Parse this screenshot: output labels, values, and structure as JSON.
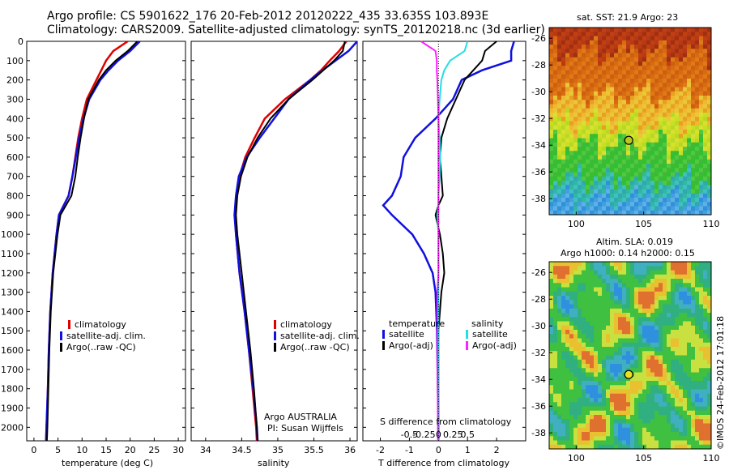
{
  "header": {
    "line1": "Argo profile: CS 5901622_176 20-Feb-2012 20120222_435 33.635S 103.893E",
    "line2": "Climatology: CARS2009. Satellite-adjusted climatology: synTS_20120218.nc (3d earlier)"
  },
  "colors": {
    "climatology": "#e00000",
    "satellite": "#1010e0",
    "argo": "#000000",
    "sal_satellite": "#20e0e0",
    "sal_argo": "#ff20ff"
  },
  "depth_axis": {
    "ticks": [
      "0",
      "100",
      "200",
      "300",
      "400",
      "500",
      "600",
      "700",
      "800",
      "900",
      "1000",
      "1100",
      "1200",
      "1300",
      "1400",
      "1500",
      "1600",
      "1700",
      "1800",
      "1900",
      "2000"
    ],
    "ylim": [
      0,
      2070
    ]
  },
  "panel_temp": {
    "xlabel": "temperature (deg C)",
    "xticks": [
      "0",
      "5",
      "10",
      "15",
      "20",
      "25",
      "30"
    ],
    "xlim": [
      -1.5,
      31.5
    ],
    "legend": [
      "climatology",
      "satellite-adj. clim.",
      "Argo(..raw -QC)"
    ]
  },
  "panel_sal": {
    "xlabel": "salinity",
    "xticks": [
      "34",
      "34.5",
      "35",
      "35.5",
      "36"
    ],
    "xlim": [
      33.8,
      36.1
    ],
    "legend": [
      "climatology",
      "satellite-adj. clim.",
      "Argo(..raw -QC)"
    ],
    "note1": "Argo AUSTRALIA",
    "note2": "PI: Susan Wijffels"
  },
  "panel_diff": {
    "xlabel": "T difference from climatology",
    "xticks": [
      "-2",
      "-1",
      "0",
      "1",
      "2"
    ],
    "xlim": [
      -2.6,
      3.0
    ],
    "top_label": "S difference from climatology",
    "top_ticks": [
      "-0.5",
      "-0.25",
      "0",
      "0.25",
      "0.5"
    ],
    "legend_temp_title": "temperature",
    "legend_sal_title": "salinity",
    "legend_temp": [
      "satellite",
      "Argo(-adj)"
    ],
    "legend_sal": [
      "satellite",
      "Argo(-adj)"
    ]
  },
  "map_sst": {
    "title": "sat. SST: 21.9 Argo: 23",
    "yticks": [
      "-26",
      "-28",
      "-30",
      "-32",
      "-34",
      "-36",
      "-38"
    ],
    "xticks": [
      "100",
      "105",
      "110"
    ]
  },
  "map_sla": {
    "title1": "Altim. SLA: 0.019",
    "title2": "Argo h1000: 0.14 h2000: 0.15",
    "yticks": [
      "-26",
      "-28",
      "-30",
      "-32",
      "-34",
      "-36",
      "-38"
    ],
    "xticks": [
      "100",
      "105",
      "110"
    ]
  },
  "credit": "©IMOS 24-Feb-2012 17:01:18",
  "chart_data": [
    {
      "type": "line",
      "xlabel": "temperature (deg C)",
      "ylabel": "",
      "xlim": [
        -1.5,
        31.5
      ],
      "ylim": [
        0,
        2070
      ],
      "y_depth": [
        0,
        50,
        100,
        150,
        200,
        300,
        400,
        500,
        600,
        700,
        800,
        900,
        1000,
        1200,
        1400,
        1600,
        1800,
        2000,
        2070
      ],
      "series": [
        {
          "name": "climatology",
          "values": [
            19.5,
            16.5,
            15.0,
            14.0,
            13.0,
            11.0,
            10.0,
            9.2,
            8.6,
            8.0,
            7.2,
            5.2,
            4.7,
            3.9,
            3.4,
            3.1,
            2.9,
            2.6,
            2.5
          ]
        },
        {
          "name": "satellite-adj. clim.",
          "values": [
            22.0,
            20.0,
            17.5,
            15.5,
            13.8,
            11.5,
            10.3,
            9.4,
            8.7,
            8.0,
            7.2,
            5.2,
            4.7,
            3.9,
            3.4,
            3.1,
            2.9,
            2.6,
            2.5
          ]
        },
        {
          "name": "Argo(..raw -QC)",
          "values": [
            21.5,
            19.5,
            17.0,
            15.0,
            13.5,
            11.3,
            10.4,
            9.7,
            9.1,
            8.6,
            7.8,
            5.5,
            4.9,
            4.0,
            3.5,
            3.2,
            3.0,
            2.8,
            2.7
          ]
        }
      ]
    },
    {
      "type": "line",
      "xlabel": "salinity",
      "ylabel": "",
      "xlim": [
        33.8,
        36.1
      ],
      "ylim": [
        0,
        2070
      ],
      "y_depth": [
        0,
        50,
        100,
        150,
        200,
        300,
        400,
        500,
        600,
        700,
        800,
        900,
        1000,
        1200,
        1400,
        1600,
        1800,
        2000,
        2070
      ],
      "series": [
        {
          "name": "climatology",
          "values": [
            35.95,
            35.85,
            35.72,
            35.6,
            35.45,
            35.1,
            34.82,
            34.68,
            34.55,
            34.47,
            34.43,
            34.41,
            34.42,
            34.47,
            34.54,
            34.6,
            34.65,
            34.7,
            34.71
          ]
        },
        {
          "name": "satellite-adj. clim.",
          "values": [
            36.1,
            35.98,
            35.8,
            35.62,
            35.45,
            35.15,
            34.95,
            34.75,
            34.57,
            34.46,
            34.42,
            34.4,
            34.42,
            34.47,
            34.54,
            34.6,
            34.66,
            34.71,
            34.72
          ]
        },
        {
          "name": "Argo(..raw -QC)",
          "values": [
            35.93,
            35.9,
            35.78,
            35.63,
            35.48,
            35.15,
            34.9,
            34.72,
            34.58,
            34.49,
            34.44,
            34.42,
            34.44,
            34.5,
            34.56,
            34.62,
            34.67,
            34.71,
            34.72
          ]
        }
      ]
    },
    {
      "type": "line",
      "xlabel": "T difference from climatology",
      "ylabel": "",
      "xlim": [
        -2.6,
        3.0
      ],
      "ylim": [
        0,
        2070
      ],
      "y_depth": [
        0,
        50,
        100,
        150,
        200,
        300,
        400,
        500,
        600,
        700,
        800,
        850,
        900,
        1000,
        1100,
        1200,
        1300,
        1500,
        2000,
        2070
      ],
      "series": [
        {
          "name": "temperature satellite",
          "values": [
            2.6,
            2.5,
            2.5,
            1.5,
            0.8,
            0.5,
            -0.1,
            -0.8,
            -1.2,
            -1.3,
            -1.6,
            -1.9,
            -1.6,
            -0.9,
            -0.5,
            -0.2,
            -0.1,
            -0.05,
            0.0,
            0.0
          ]
        },
        {
          "name": "temperature Argo(-adj)",
          "values": [
            2.0,
            1.6,
            1.5,
            1.2,
            0.9,
            0.6,
            0.3,
            0.1,
            0.05,
            0.1,
            0.15,
            0.0,
            -0.1,
            0.05,
            0.15,
            0.2,
            0.1,
            0.0,
            0.0,
            0.0
          ]
        },
        {
          "name": "salinity satellite",
          "values": [
            0.5,
            0.45,
            0.2,
            0.1,
            0.05,
            0.02,
            0.0,
            0.02,
            0.03,
            0.02,
            0.0,
            0.0,
            -0.02,
            0.0,
            0.0,
            0.0,
            0.0,
            0.0,
            0.0,
            0.0
          ]
        },
        {
          "name": "salinity Argo(-adj)",
          "values": [
            -0.3,
            -0.05,
            -0.03,
            -0.03,
            -0.02,
            -0.01,
            0.0,
            0.0,
            0.0,
            0.0,
            0.0,
            0.0,
            0.0,
            0.0,
            0.0,
            0.0,
            -0.02,
            -0.02,
            -0.01,
            -0.01
          ]
        }
      ]
    }
  ]
}
